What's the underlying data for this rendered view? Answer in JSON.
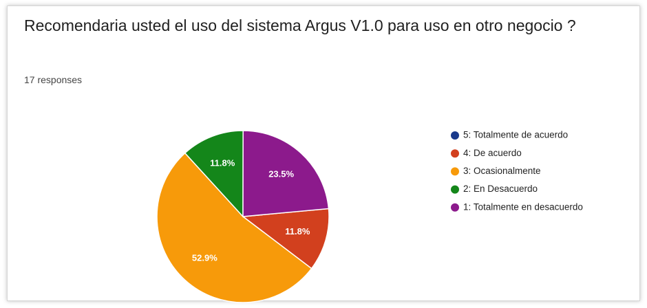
{
  "chart_data": {
    "type": "pie",
    "title": "Recomendaria usted el uso del sistema Argus V1.0 para uso en otro negocio ?",
    "subtitle": "17 responses",
    "categories": [
      "5: Totalmente de acuerdo",
      "4: De acuerdo",
      "3: Ocasionalmente",
      "2: En Desacuerdo",
      "1: Totalmente en desacuerdo"
    ],
    "values": [
      0,
      11.8,
      52.9,
      11.8,
      23.5
    ],
    "value_labels": [
      null,
      "11.8%",
      "52.9%",
      "11.8%",
      "23.5%"
    ],
    "colors": [
      "#1a3a8c",
      "#d2401e",
      "#f79a0a",
      "#14861a",
      "#8c1a8c"
    ],
    "legend": "right"
  }
}
